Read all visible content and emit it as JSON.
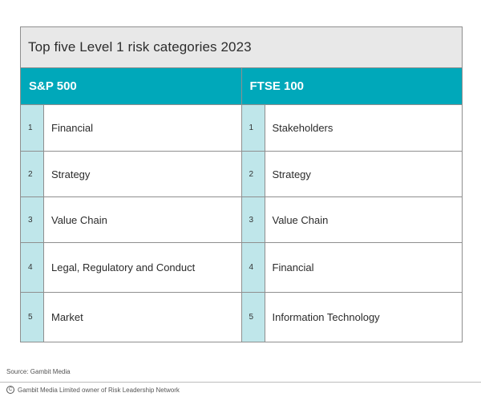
{
  "title": "Top five Level 1 risk categories 2023",
  "columns": {
    "left": "S&P 500",
    "right": "FTSE 100"
  },
  "rows": [
    {
      "num": "1",
      "left": "Financial",
      "right": "Stakeholders"
    },
    {
      "num": "2",
      "left": "Strategy",
      "right": "Strategy"
    },
    {
      "num": "3",
      "left": "Value Chain",
      "right": "Value Chain"
    },
    {
      "num": "4",
      "left": "Legal, Regulatory and Conduct",
      "right": "Financial"
    },
    {
      "num": "5",
      "left": "Market",
      "right": "Information Technology"
    }
  ],
  "source": "Source: Gambit Media",
  "footer": {
    "icon": "copyright-icon",
    "text": "Gambit Media Limited owner of Risk Leadership Network"
  },
  "colors": {
    "header": "#00a8ba",
    "number_column": "#bfe6ea",
    "title_bar": "#e8e8e8"
  }
}
